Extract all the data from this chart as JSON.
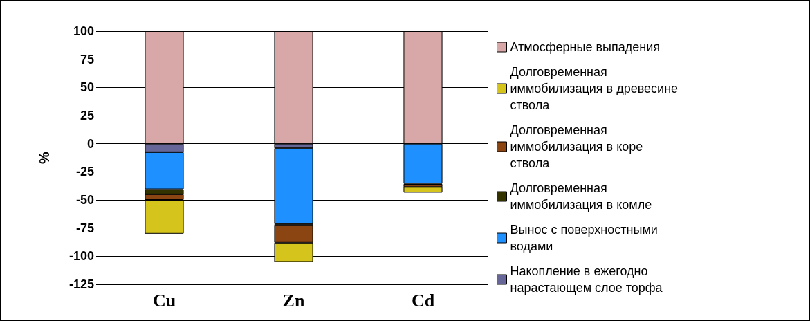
{
  "chart_data": {
    "type": "bar",
    "ylabel": "%",
    "categories": [
      "Cu",
      "Zn",
      "Cd"
    ],
    "stacked": true,
    "ylim": [
      -125,
      100
    ],
    "yticks": [
      -125,
      -100,
      -75,
      -50,
      -25,
      0,
      25,
      50,
      75,
      100
    ],
    "grid": "y",
    "legend": "right",
    "series": [
      {
        "name": "Атмосферные выпадения",
        "color": "#d8a8a8",
        "values": [
          100,
          100,
          100
        ]
      },
      {
        "name": "Накопление в ежегодно нарастающем слое торфа",
        "color": "#666699",
        "values": [
          -7.5,
          -4,
          null
        ]
      },
      {
        "name": "Вынос с поверхностными водами",
        "color": "#1e90ff",
        "values": [
          -33,
          -67,
          -35.5
        ]
      },
      {
        "name": "Долговременная иммобилизация в комле",
        "color": "#333300",
        "values": [
          -4.5,
          -1,
          -1
        ]
      },
      {
        "name": "Долговременная иммобилизация в коре ствола",
        "color": "#8b4513",
        "values": [
          -5,
          -16,
          -2
        ]
      },
      {
        "name": "Долговременная иммобилизация в древесине ствола",
        "color": "#d4c41c",
        "values": [
          -30,
          -17,
          -5
        ]
      }
    ]
  }
}
